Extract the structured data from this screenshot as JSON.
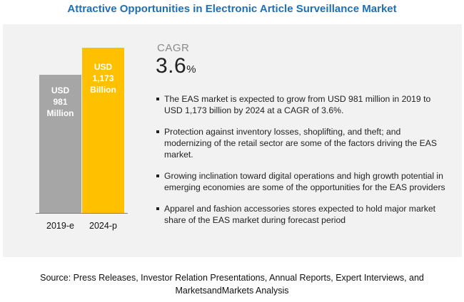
{
  "title": "Attractive Opportunities in Electronic Article Surveillance Market",
  "cagr": {
    "label": "CAGR",
    "value": "3.6",
    "unit": "%"
  },
  "bullets": [
    "The EAS market is expected to grow from USD 981 million in 2019 to USD 1,173 billion by 2024 at a CAGR of 3.6%.",
    "Protection against inventory losses, shoplifting, and theft; and modernizing of the retail sector are some of the factors driving the EAS market.",
    "Growing inclination toward digital operations and high growth potential in emerging economies are some of the opportunities for the EAS providers",
    "Apparel and fashion accessories stores expected to hold major market share of the EAS market during forecast period"
  ],
  "source": "Source: Press Releases, Investor Relation Presentations, Annual Reports, Expert Interviews, and MarketsandMarkets Analysis",
  "chart_data": {
    "type": "bar",
    "categories": [
      "2019-e",
      "2024-p"
    ],
    "values": [
      981,
      1173
    ],
    "value_labels": [
      [
        "USD",
        "981",
        "Million"
      ],
      [
        "USD",
        "1,173",
        "Billion"
      ]
    ],
    "colors": [
      "#a6a6a6",
      "#ffc000"
    ],
    "title": "",
    "xlabel": "",
    "ylabel": "",
    "grid": false
  }
}
